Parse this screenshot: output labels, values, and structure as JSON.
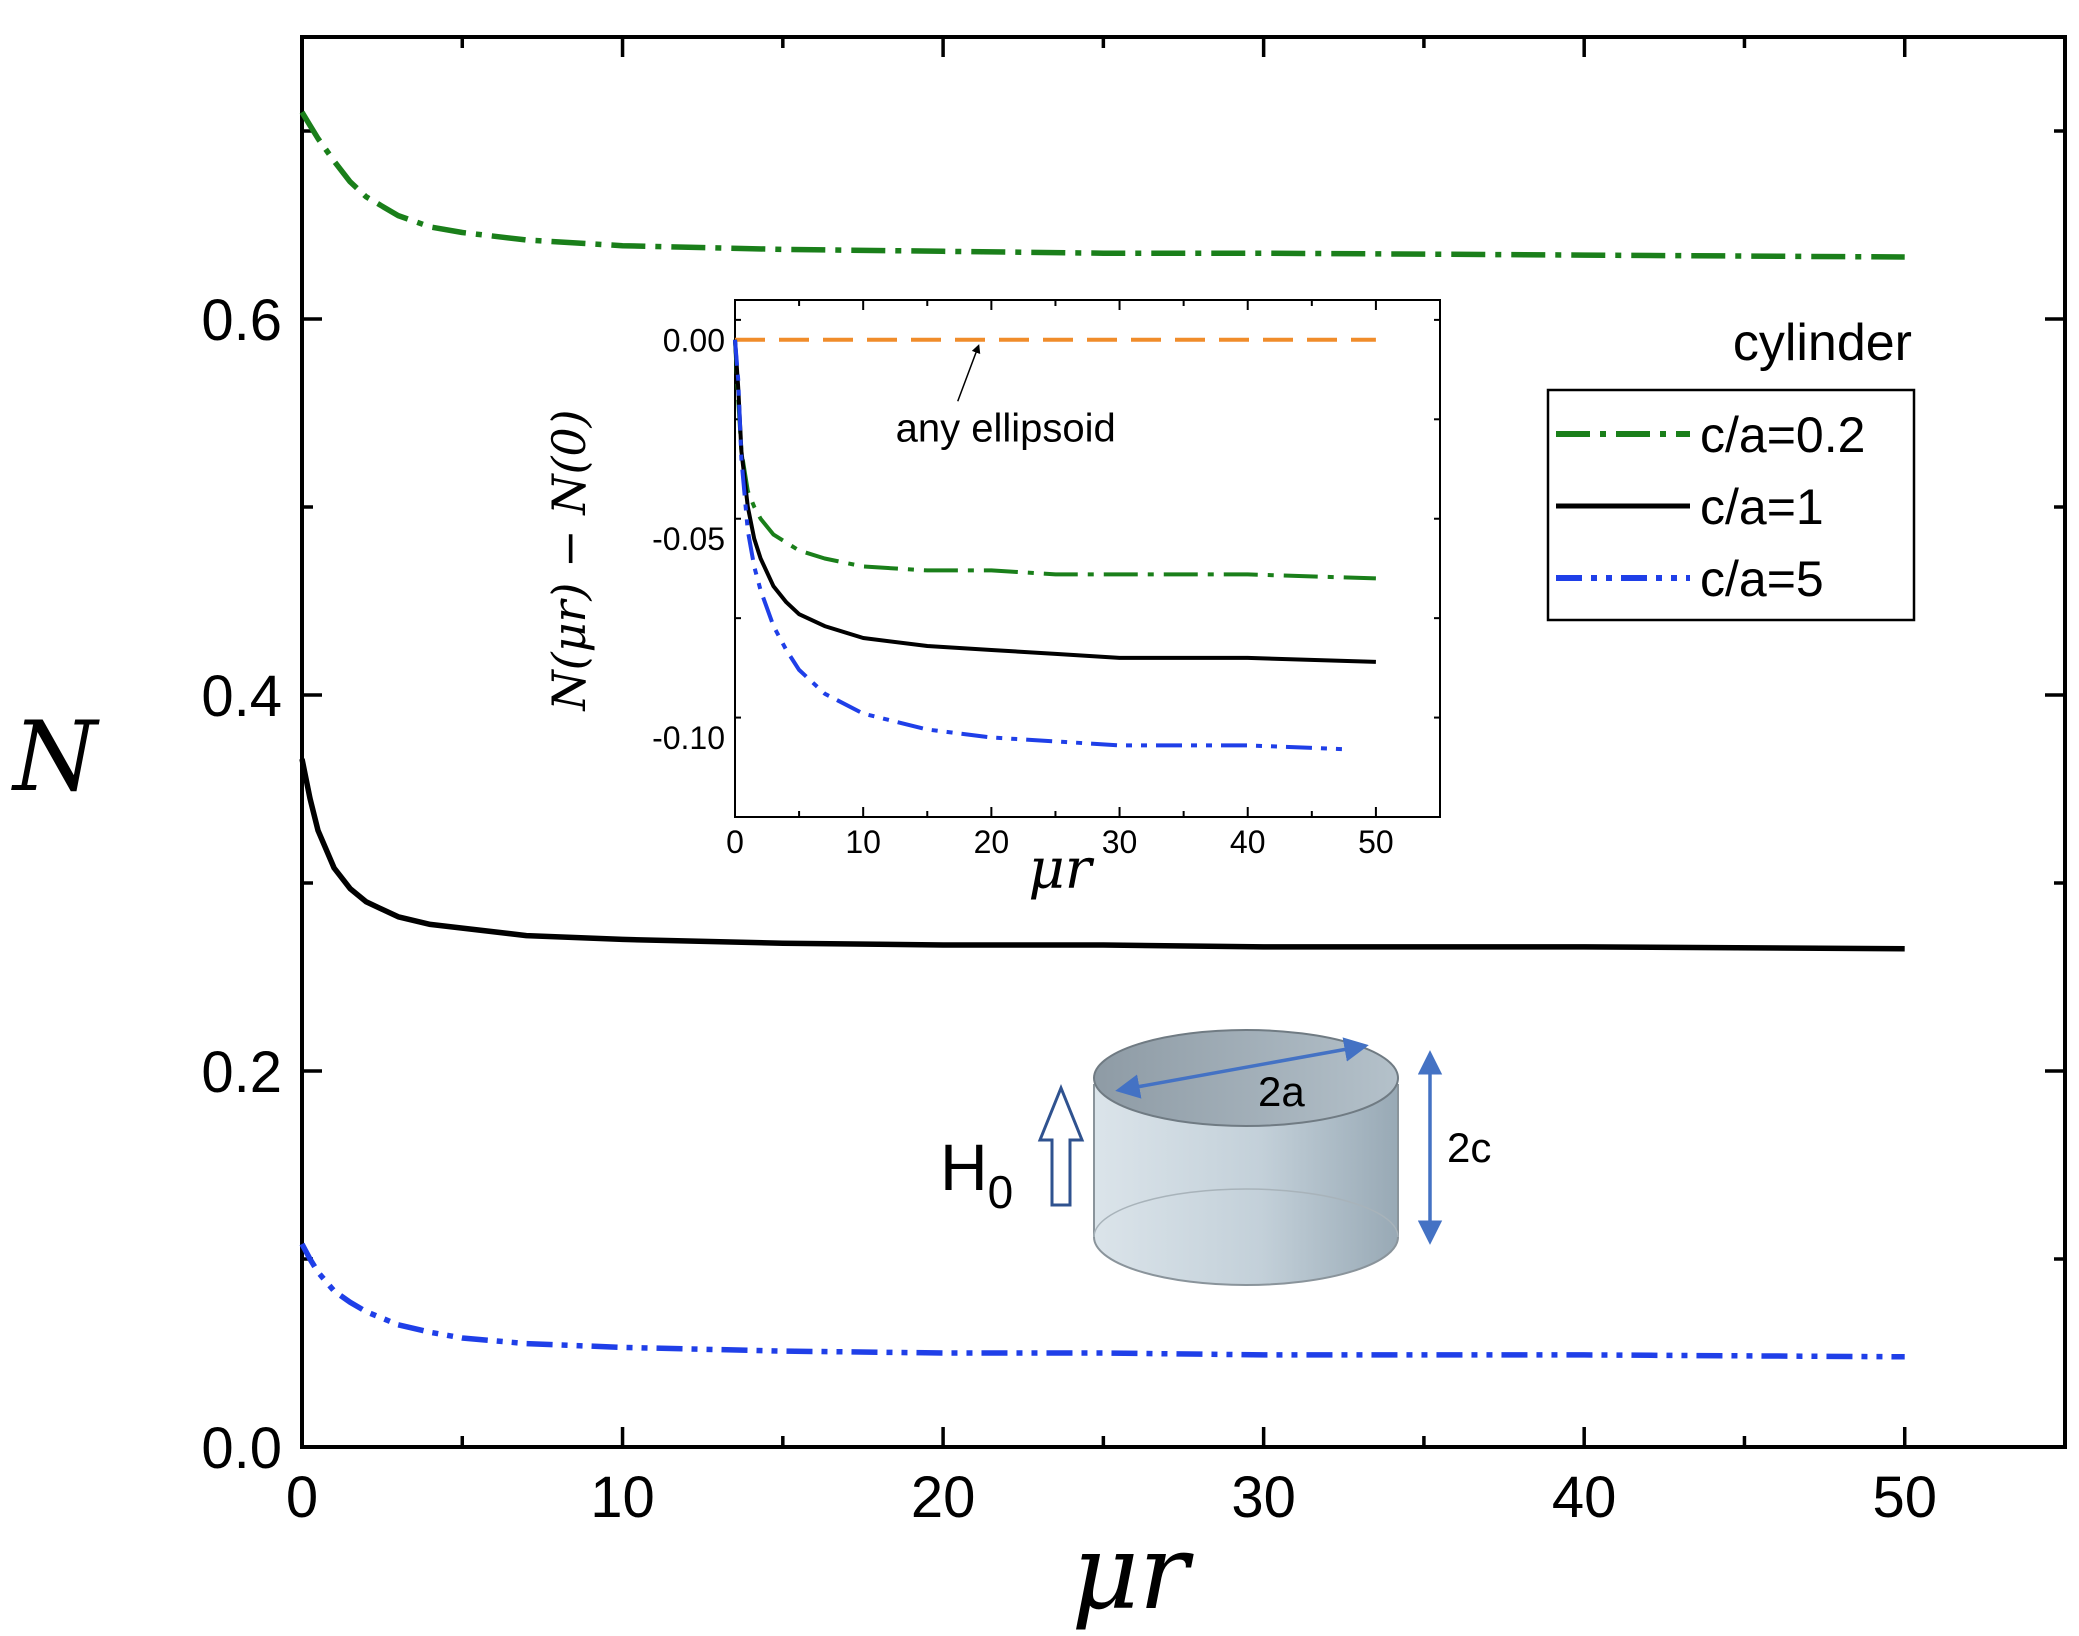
{
  "colors": {
    "green": "#1a7f1a",
    "black": "#000000",
    "blue": "#1f3fe8",
    "orange": "#f08c2a",
    "arrow_blue": "#4472c4",
    "cyl_fill": "#c9d6df"
  },
  "chart_data": [
    {
      "type": "line",
      "role": "main",
      "xlabel": "μr",
      "ylabel": "N",
      "xlim": [
        0,
        55
      ],
      "ylim": [
        0,
        0.75
      ],
      "xticks": [
        0,
        10,
        20,
        30,
        40,
        50
      ],
      "xtick_labels": [
        "0",
        "10",
        "20",
        "30",
        "40",
        "50"
      ],
      "yticks": [
        0.0,
        0.2,
        0.4,
        0.6
      ],
      "ytick_labels": [
        "0.0",
        "0.2",
        "0.4",
        "0.6"
      ],
      "legend_title": "cylinder",
      "legend_position": "right",
      "series": [
        {
          "name": "c/a=0.2",
          "color_key": "green",
          "style": "dashdot",
          "x": [
            0,
            0.25,
            0.5,
            1,
            1.5,
            2,
            3,
            4,
            5,
            7,
            10,
            15,
            20,
            25,
            30,
            40,
            50
          ],
          "y": [
            0.71,
            0.703,
            0.696,
            0.684,
            0.673,
            0.665,
            0.655,
            0.649,
            0.646,
            0.642,
            0.639,
            0.637,
            0.636,
            0.635,
            0.635,
            0.634,
            0.633
          ]
        },
        {
          "name": "c/a=1",
          "color_key": "black",
          "style": "solid",
          "x": [
            0,
            0.25,
            0.5,
            1,
            1.5,
            2,
            3,
            4,
            5,
            7,
            10,
            15,
            20,
            25,
            30,
            40,
            50
          ],
          "y": [
            0.366,
            0.345,
            0.328,
            0.308,
            0.297,
            0.29,
            0.282,
            0.278,
            0.276,
            0.272,
            0.27,
            0.268,
            0.267,
            0.267,
            0.266,
            0.266,
            0.265
          ]
        },
        {
          "name": "c/a=5",
          "color_key": "blue",
          "style": "dashdotdot",
          "x": [
            0,
            0.25,
            0.5,
            1,
            1.5,
            2,
            3,
            4,
            5,
            7,
            10,
            15,
            20,
            25,
            30,
            40,
            50
          ],
          "y": [
            0.108,
            0.1,
            0.093,
            0.083,
            0.077,
            0.072,
            0.065,
            0.061,
            0.058,
            0.055,
            0.053,
            0.051,
            0.05,
            0.05,
            0.049,
            0.049,
            0.048
          ]
        }
      ],
      "annotation": {
        "field_label": "H",
        "field_sub": "0",
        "diameter_label": "2a",
        "height_label": "2c"
      }
    },
    {
      "type": "line",
      "role": "inset",
      "xlabel": "μr",
      "ylabel": "N(μr) − N(0)",
      "xlim": [
        0,
        55
      ],
      "ylim": [
        -0.12,
        0.01
      ],
      "xticks": [
        0,
        10,
        20,
        30,
        40,
        50
      ],
      "xtick_labels": [
        "0",
        "10",
        "20",
        "30",
        "40",
        "50"
      ],
      "yticks": [
        0.0,
        -0.05,
        -0.1
      ],
      "ytick_labels": [
        "0.00",
        "-0.05",
        "-0.10"
      ],
      "annotation_text": "any ellipsoid",
      "annotation_target": [
        19,
        0.0
      ],
      "annotation_text_at": [
        18,
        -0.022
      ],
      "series": [
        {
          "name": "any ellipsoid",
          "color_key": "orange",
          "style": "dashed",
          "x": [
            0,
            50
          ],
          "y": [
            0,
            0
          ]
        },
        {
          "name": "c/a=0.2",
          "color_key": "green",
          "style": "dashdot",
          "x": [
            0,
            0.25,
            0.5,
            1,
            1.5,
            2,
            3,
            4,
            5,
            7,
            10,
            15,
            20,
            25,
            30,
            40,
            50
          ],
          "y": [
            0,
            -0.015,
            -0.028,
            -0.038,
            -0.042,
            -0.045,
            -0.049,
            -0.051,
            -0.053,
            -0.055,
            -0.057,
            -0.058,
            -0.058,
            -0.059,
            -0.059,
            -0.059,
            -0.06
          ]
        },
        {
          "name": "c/a=1",
          "color_key": "black",
          "style": "solid",
          "x": [
            0,
            0.25,
            0.5,
            1,
            1.5,
            2,
            3,
            4,
            5,
            7,
            10,
            15,
            20,
            25,
            30,
            40,
            50
          ],
          "y": [
            0,
            -0.012,
            -0.028,
            -0.042,
            -0.05,
            -0.055,
            -0.062,
            -0.066,
            -0.069,
            -0.072,
            -0.075,
            -0.077,
            -0.078,
            -0.079,
            -0.08,
            -0.08,
            -0.081
          ]
        },
        {
          "name": "c/a=5",
          "color_key": "blue",
          "style": "dashdotdot",
          "x": [
            0,
            0.25,
            0.5,
            1,
            1.5,
            2,
            3,
            4,
            5,
            7,
            10,
            15,
            20,
            25,
            30,
            40,
            48
          ],
          "y": [
            0,
            -0.01,
            -0.03,
            -0.048,
            -0.057,
            -0.063,
            -0.072,
            -0.078,
            -0.083,
            -0.089,
            -0.094,
            -0.098,
            -0.1,
            -0.101,
            -0.102,
            -0.102,
            -0.103
          ]
        }
      ]
    }
  ]
}
